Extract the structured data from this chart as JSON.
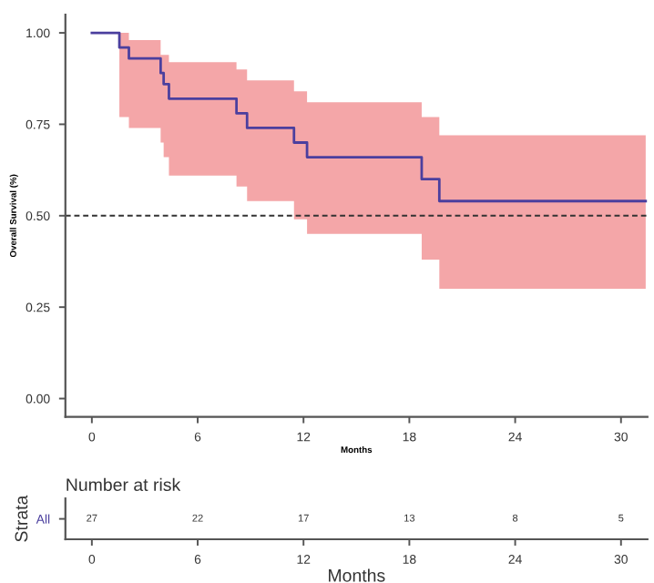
{
  "chart_data": [
    {
      "type": "step",
      "ylabel": "Overall Survival (%)",
      "xlabel": "Months",
      "series": [
        {
          "color": "#4b3f9e",
          "x": [
            0,
            1.56,
            2.1,
            3.9,
            4.07,
            4.37,
            8.2,
            8.8,
            11.46,
            12.2,
            18.7,
            19.7,
            31.4
          ],
          "values": [
            1.0,
            0.96,
            0.93,
            0.89,
            0.86,
            0.82,
            0.78,
            0.74,
            0.7,
            0.66,
            0.6,
            0.54,
            0.54
          ],
          "lower": [
            1.0,
            0.77,
            0.74,
            0.7,
            0.66,
            0.61,
            0.58,
            0.54,
            0.49,
            0.45,
            0.38,
            0.3,
            0.3
          ],
          "upper": [
            1.0,
            1.0,
            0.98,
            0.94,
            0.94,
            0.92,
            0.9,
            0.87,
            0.84,
            0.81,
            0.77,
            0.72,
            0.72
          ]
        }
      ],
      "ref_lines": [
        {
          "axis": "y",
          "value": 0.5,
          "line_style": "dashed",
          "color": "#333333"
        }
      ],
      "xlim": [
        -1.5,
        31.5
      ],
      "ylim": [
        -0.05,
        1.05
      ],
      "xticks": [
        0,
        6,
        12,
        18,
        24,
        30
      ],
      "yticks": [
        {
          "value": 0,
          "label": "0.00"
        },
        {
          "value": 0.25,
          "label": "0.25"
        },
        {
          "value": 0.5,
          "label": "0.50"
        },
        {
          "value": 0.75,
          "label": "0.75"
        },
        {
          "value": 1,
          "label": "1.00"
        }
      ],
      "grid": false,
      "legend": false
    },
    {
      "type": "heatmap",
      "title": "Number at risk",
      "xlabel": "Months",
      "ylabel": "Strata",
      "categories": [
        "0",
        "6",
        "12",
        "18",
        "24",
        "30"
      ],
      "y_categories": [
        "All"
      ],
      "cells": [
        [
          27,
          22,
          17,
          13,
          8,
          5
        ]
      ],
      "data_labels": true
    }
  ]
}
